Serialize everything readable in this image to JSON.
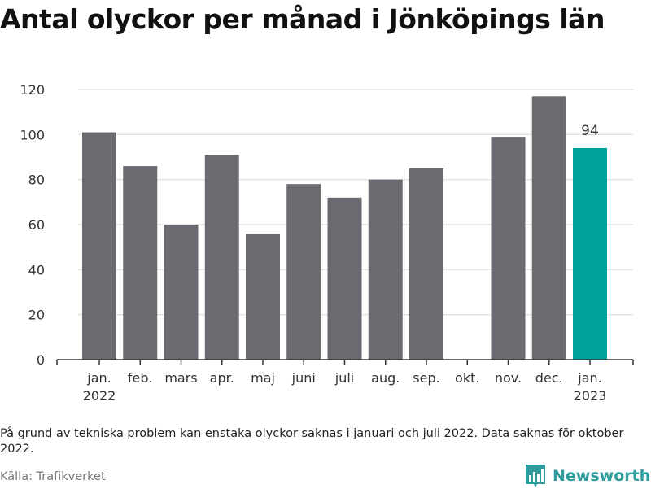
{
  "title": "Antal olyckor per månad i Jönköpings län",
  "note": "På grund av tekniska problem kan enstaka olyckor saknas i januari och juli 2022. Data saknas för oktober 2022.",
  "source": "Källa: Trafikverket",
  "brand": {
    "name": "Newsworthy",
    "icon": "newsworthy-logo-icon"
  },
  "colors": {
    "bar": "#6b6a70",
    "highlight": "#00a39b",
    "grid": "#dddddd",
    "axis": "#333333",
    "brand": "#2e9c9c"
  },
  "chart_data": {
    "type": "bar",
    "categories": [
      "jan. 2022",
      "feb.",
      "mars",
      "apr.",
      "maj",
      "juni",
      "juli",
      "aug.",
      "sep.",
      "okt.",
      "nov.",
      "dec.",
      "jan. 2023"
    ],
    "category_lines": [
      [
        "jan.",
        "2022"
      ],
      [
        "feb."
      ],
      [
        "mars"
      ],
      [
        "apr."
      ],
      [
        "maj"
      ],
      [
        "juni"
      ],
      [
        "juli"
      ],
      [
        "aug."
      ],
      [
        "sep."
      ],
      [
        "okt."
      ],
      [
        "nov."
      ],
      [
        "dec."
      ],
      [
        "jan.",
        "2023"
      ]
    ],
    "values": [
      101,
      86,
      60,
      91,
      56,
      78,
      72,
      80,
      85,
      null,
      99,
      117,
      94
    ],
    "highlight_index": 12,
    "data_labels": [
      {
        "index": 12,
        "text": "94"
      }
    ],
    "yticks": [
      0,
      20,
      40,
      60,
      80,
      100,
      120
    ],
    "ylim": [
      0,
      120
    ],
    "xlabel": "",
    "ylabel": "",
    "grid": true,
    "legend": "none"
  }
}
